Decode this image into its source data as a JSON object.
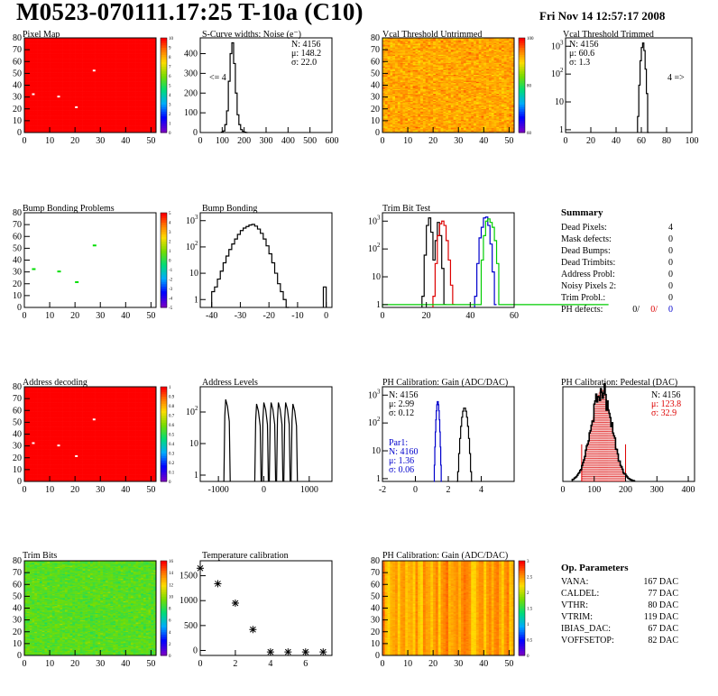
{
  "header": {
    "title": "M0523-070111.17:25 T-10a (C10)",
    "date": "Fri Nov 14 12:57:17 2008"
  },
  "colors": {
    "pixel_map_fill": "#ff0000",
    "pixel_dot": "#ffffff",
    "bump_mark": "#00dd00",
    "trim_red": "#dd0000",
    "trim_blue": "#0000cc",
    "trim_green": "#00cc00",
    "pedestal_red": "#dd0000",
    "gain_param_blue": "#0000cc"
  },
  "chart_data": [
    {
      "type": "heatmap",
      "title": "Pixel Map",
      "x_ticks": [
        "0",
        "10",
        "20",
        "30",
        "40",
        "50"
      ],
      "y_ticks": [
        "0",
        "10",
        "20",
        "30",
        "40",
        "50",
        "60",
        "70",
        "80"
      ],
      "palette_ticks": [
        "0",
        "1",
        "2",
        "3",
        "4",
        "5",
        "6",
        "7",
        "8",
        "9",
        "10"
      ],
      "fill": "uniform red (value 10)",
      "dead_pixels": [
        [
          3,
          32
        ],
        [
          13,
          30
        ],
        [
          20,
          21
        ],
        [
          27,
          52
        ]
      ]
    },
    {
      "type": "histogram",
      "title": "S-Curve widths: Noise (e⁻)",
      "x_ticks": [
        "0",
        "100",
        "200",
        "300",
        "400",
        "500",
        "600"
      ],
      "y_ticks": [
        "0",
        "100",
        "200",
        "300",
        "400"
      ],
      "xlim": [
        0,
        600
      ],
      "ylim": [
        0,
        480
      ],
      "stats": [
        "N: 4156",
        "μ: 148.2",
        "σ: 22.0"
      ],
      "underflow_label": "<= 4",
      "bins": [
        [
          96,
          2
        ],
        [
          104,
          8
        ],
        [
          112,
          40
        ],
        [
          120,
          110
        ],
        [
          128,
          260
        ],
        [
          136,
          400
        ],
        [
          144,
          455
        ],
        [
          152,
          350
        ],
        [
          160,
          200
        ],
        [
          168,
          90
        ],
        [
          176,
          40
        ],
        [
          184,
          15
        ],
        [
          192,
          6
        ],
        [
          200,
          2
        ],
        [
          208,
          0
        ]
      ]
    },
    {
      "type": "heatmap",
      "title": "Vcal Threshold Untrimmed",
      "x_ticks": [
        "0",
        "10",
        "20",
        "30",
        "40",
        "50"
      ],
      "y_ticks": [
        "0",
        "10",
        "20",
        "30",
        "40",
        "50",
        "60",
        "70",
        "80"
      ],
      "palette_ticks": [
        "60",
        "80",
        "100"
      ],
      "fill": "noisy orange"
    },
    {
      "type": "histogram",
      "title": "Vcal Threshold Trimmed",
      "x_ticks": [
        "0",
        "20",
        "40",
        "60",
        "80",
        "100"
      ],
      "y_ticks": [
        "1",
        "10",
        "10²",
        "10³"
      ],
      "xlim": [
        0,
        100
      ],
      "log_y": true,
      "stats": [
        "N: 4156",
        "μ: 60.6",
        "σ:  1.3"
      ],
      "overflow_label": "4 =>",
      "bins": [
        [
          57,
          3
        ],
        [
          58,
          40
        ],
        [
          59,
          300
        ],
        [
          60,
          900
        ],
        [
          61,
          1300
        ],
        [
          62,
          700
        ],
        [
          63,
          150
        ],
        [
          64,
          20
        ],
        [
          65,
          0
        ]
      ]
    },
    {
      "type": "heatmap",
      "title": "Bump Bonding Problems",
      "x_ticks": [
        "0",
        "10",
        "20",
        "30",
        "40",
        "50"
      ],
      "y_ticks": [
        "0",
        "10",
        "20",
        "30",
        "40",
        "50",
        "60",
        "70",
        "80"
      ],
      "palette_ticks": [
        "-5",
        "-4",
        "-3",
        "-2",
        "-1",
        "0",
        "1",
        "2",
        "3",
        "4",
        "5"
      ],
      "fill": "white (no problems)",
      "marked_pixels": [
        [
          3,
          32
        ],
        [
          13,
          30
        ],
        [
          20,
          21
        ],
        [
          27,
          52
        ]
      ]
    },
    {
      "type": "histogram",
      "title": "Bump Bonding",
      "x_ticks": [
        "-40",
        "-30",
        "-20",
        "-10",
        "0"
      ],
      "y_ticks": [
        "1",
        "10",
        "10²",
        "10³"
      ],
      "xlim": [
        -44,
        2
      ],
      "log_y": true,
      "bins": [
        [
          -40,
          2
        ],
        [
          -39,
          3
        ],
        [
          -38,
          6
        ],
        [
          -37,
          12
        ],
        [
          -36,
          25
        ],
        [
          -35,
          45
        ],
        [
          -34,
          80
        ],
        [
          -33,
          130
        ],
        [
          -32,
          200
        ],
        [
          -31,
          300
        ],
        [
          -30,
          420
        ],
        [
          -29,
          520
        ],
        [
          -28,
          600
        ],
        [
          -27,
          680
        ],
        [
          -26,
          720
        ],
        [
          -25,
          620
        ],
        [
          -24,
          480
        ],
        [
          -23,
          330
        ],
        [
          -22,
          200
        ],
        [
          -21,
          110
        ],
        [
          -20,
          55
        ],
        [
          -19,
          25
        ],
        [
          -18,
          10
        ],
        [
          -17,
          4
        ],
        [
          -16,
          2
        ],
        [
          -15,
          1
        ],
        [
          -14,
          0
        ],
        [
          -1,
          3
        ],
        [
          0,
          0
        ]
      ]
    },
    {
      "type": "line",
      "title": "Trim Bit Test",
      "x_ticks": [
        "0",
        "20",
        "40",
        "60"
      ],
      "y_ticks": [
        "1",
        "10",
        "10²",
        "10³"
      ],
      "xlim": [
        0,
        60
      ],
      "log_y": true,
      "series": [
        {
          "color": "black",
          "points": [
            [
              18,
              2
            ],
            [
              19,
              60
            ],
            [
              20,
              700
            ],
            [
              21,
              1300
            ],
            [
              22,
              400
            ],
            [
              23,
              40
            ],
            [
              24,
              200
            ],
            [
              25,
              900
            ],
            [
              26,
              300
            ],
            [
              27,
              20
            ],
            [
              28,
              1
            ]
          ]
        },
        {
          "color": "red",
          "points": [
            [
              23,
              2
            ],
            [
              24,
              30
            ],
            [
              25,
              300
            ],
            [
              26,
              800
            ],
            [
              27,
              1000
            ],
            [
              28,
              700
            ],
            [
              29,
              200
            ],
            [
              30,
              40
            ],
            [
              31,
              5
            ],
            [
              32,
              1
            ]
          ]
        },
        {
          "color": "blue",
          "points": [
            [
              42,
              2
            ],
            [
              43,
              30
            ],
            [
              44,
              250
            ],
            [
              45,
              600
            ],
            [
              46,
              1300
            ],
            [
              47,
              1400
            ],
            [
              48,
              700
            ],
            [
              49,
              150
            ],
            [
              50,
              15
            ],
            [
              51,
              1
            ]
          ]
        },
        {
          "color": "green",
          "points": [
            [
              0,
              1
            ],
            [
              43,
              1
            ],
            [
              45,
              40
            ],
            [
              46,
              300
            ],
            [
              47,
              1000
            ],
            [
              48,
              1200
            ],
            [
              49,
              900
            ],
            [
              50,
              600
            ],
            [
              51,
              200
            ],
            [
              52,
              30
            ],
            [
              53,
              1
            ],
            [
              60,
              1
            ]
          ]
        }
      ]
    },
    {
      "type": "table",
      "title": "Summary",
      "rows": [
        {
          "label": "Dead Pixels:",
          "value": "4"
        },
        {
          "label": "Mask defects:",
          "value": "0"
        },
        {
          "label": "Dead Bumps:",
          "value": "0"
        },
        {
          "label": "Dead Trimbits:",
          "value": "0"
        },
        {
          "label": "Address Probl:",
          "value": "0"
        },
        {
          "label": "Noisy Pixels 2:",
          "value": "0"
        },
        {
          "label": "Trim Probl.:",
          "value": "0"
        }
      ],
      "ph_defects_label": "PH defects:",
      "ph_defects_values": [
        "0/",
        "0/",
        "0"
      ]
    },
    {
      "type": "heatmap",
      "title": "Address decoding",
      "x_ticks": [
        "0",
        "10",
        "20",
        "30",
        "40",
        "50"
      ],
      "y_ticks": [
        "0",
        "10",
        "20",
        "30",
        "40",
        "50",
        "60",
        "70",
        "80"
      ],
      "palette_ticks": [
        "0",
        "0.1",
        "0.2",
        "0.3",
        "0.4",
        "0.5",
        "0.6",
        "0.7",
        "0.8",
        "0.9",
        "1"
      ],
      "fill": "uniform red (value 1)",
      "dead_pixels": [
        [
          3,
          32
        ],
        [
          13,
          30
        ],
        [
          20,
          21
        ],
        [
          27,
          52
        ]
      ]
    },
    {
      "type": "histogram",
      "title": "Address Levels",
      "x_ticks": [
        "-1000",
        "0",
        "1000"
      ],
      "y_ticks": [
        "1",
        "10",
        "10²"
      ],
      "xlim": [
        -1400,
        1500
      ],
      "log_y": true,
      "peaks": [
        [
          -780,
          250
        ],
        [
          -100,
          180
        ],
        [
          60,
          200
        ],
        [
          220,
          200
        ],
        [
          380,
          200
        ],
        [
          540,
          200
        ],
        [
          700,
          180
        ]
      ]
    },
    {
      "type": "histogram",
      "title": "PH Calibration: Gain (ADC/DAC)",
      "x_ticks": [
        "-2",
        "0",
        "2",
        "4"
      ],
      "y_ticks": [
        "1",
        "10",
        "10²",
        "10³"
      ],
      "xlim": [
        -2,
        6
      ],
      "log_y": true,
      "stats": [
        "N: 4156",
        "μ: 2.99",
        "σ: 0.12"
      ],
      "param_stats": [
        "Par1:",
        "N: 4160",
        "μ: 1.36",
        "σ: 0.06"
      ],
      "series": [
        {
          "name": "Par1",
          "color": "blue",
          "center": 1.36,
          "sigma": 0.06,
          "peak": 600
        },
        {
          "color": "black",
          "center": 2.99,
          "sigma": 0.12,
          "peak": 350
        }
      ]
    },
    {
      "type": "histogram",
      "title": "PH Calibration: Pedestal (DAC)",
      "x_ticks": [
        "0",
        "100",
        "200",
        "300",
        "400"
      ],
      "y_ticks": [],
      "xlim": [
        0,
        420
      ],
      "stats": [
        "N: 4156",
        "μ: 123.8",
        "σ: 32.9"
      ],
      "center": 123.8,
      "sigma": 32.9
    },
    {
      "type": "heatmap",
      "title": "Trim Bits",
      "x_ticks": [
        "0",
        "10",
        "20",
        "30",
        "40",
        "50"
      ],
      "y_ticks": [
        "0",
        "10",
        "20",
        "30",
        "40",
        "50",
        "60",
        "70",
        "80"
      ],
      "palette_ticks": [
        "0",
        "2",
        "4",
        "6",
        "8",
        "10",
        "12",
        "14",
        "16"
      ],
      "fill": "noisy green/yellow"
    },
    {
      "type": "scatter",
      "title": "Temperature calibration",
      "x_ticks": [
        "0",
        "2",
        "4",
        "6"
      ],
      "y_ticks": [
        "0",
        "500",
        "1000",
        "1500"
      ],
      "xlim": [
        0,
        7.5
      ],
      "ylim": [
        -100,
        1800
      ],
      "points": [
        [
          0,
          1650
        ],
        [
          1,
          1340
        ],
        [
          2,
          950
        ],
        [
          3,
          420
        ],
        [
          4,
          -30
        ],
        [
          5,
          -30
        ],
        [
          6,
          -30
        ],
        [
          7,
          -30
        ]
      ]
    },
    {
      "type": "heatmap",
      "title": "PH Calibration: Gain (ADC/DAC)",
      "x_ticks": [
        "0",
        "10",
        "20",
        "30",
        "40",
        "50"
      ],
      "y_ticks": [
        "0",
        "10",
        "20",
        "30",
        "40",
        "50",
        "60",
        "70",
        "80"
      ],
      "palette_ticks": [
        "0",
        "0.5",
        "1",
        "1.5",
        "2",
        "2.5",
        "3"
      ],
      "fill": "column-banded orange/red"
    },
    {
      "type": "table",
      "title": "Op. Parameters",
      "rows": [
        {
          "label": "VANA:",
          "value": "167 DAC"
        },
        {
          "label": "CALDEL:",
          "value": "77 DAC"
        },
        {
          "label": "VTHR:",
          "value": "80 DAC"
        },
        {
          "label": "VTRIM:",
          "value": "119 DAC"
        },
        {
          "label": "IBIAS_DAC:",
          "value": "67 DAC"
        },
        {
          "label": "VOFFSETOP:",
          "value": "82 DAC"
        }
      ]
    }
  ]
}
